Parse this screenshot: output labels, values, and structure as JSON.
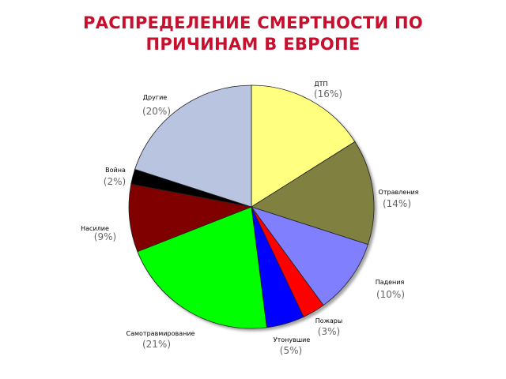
{
  "header": {
    "title_line1": "РАСПРЕДЕЛЕНИЕ СМЕРТНОСТИ ПО",
    "title_line2": "ПРИЧИНАМ В ЕВРОПЕ"
  },
  "chart_data": {
    "type": "pie",
    "title": "РАСПРЕДЕЛЕНИЕ СМЕРТНОСТИ ПО ПРИЧИНАМ В ЕВРОПЕ",
    "start_angle_deg": 0,
    "direction": "clockwise",
    "legend": "none",
    "slices": [
      {
        "name": "ДТП",
        "value": 16,
        "label": "(16%)",
        "color": "#ffff80"
      },
      {
        "name": "Отравления",
        "value": 14,
        "label": "(14%)",
        "color": "#808040"
      },
      {
        "name": "Падения",
        "value": 10,
        "label": "(10%)",
        "color": "#8080ff"
      },
      {
        "name": "Пожары",
        "value": 3,
        "label": "(3%)",
        "color": "#ff0000"
      },
      {
        "name": "Утонувшие",
        "value": 5,
        "label": "(5%)",
        "color": "#0000ff"
      },
      {
        "name": "Самотравмирование",
        "value": 21,
        "label": "(21%)",
        "color": "#00ff00"
      },
      {
        "name": "Насилие",
        "value": 9,
        "label": "(9%)",
        "color": "#800000"
      },
      {
        "name": "Война",
        "value": 2,
        "label": "(2%)",
        "color": "#000000"
      },
      {
        "name": "Другие",
        "value": 20,
        "label": "(20%)",
        "color": "#b8c4e0"
      }
    ]
  }
}
